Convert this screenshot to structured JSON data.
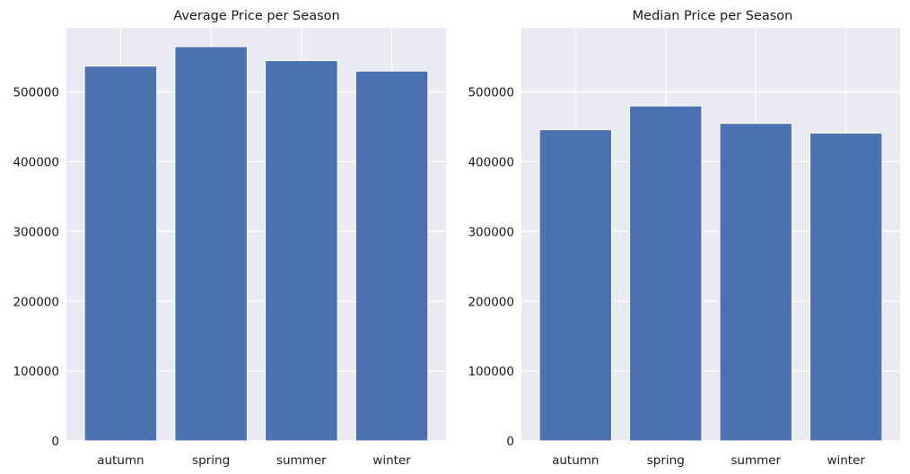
{
  "chart_data": [
    {
      "type": "bar",
      "title": "Average Price per Season",
      "categories": [
        "autumn",
        "spring",
        "summer",
        "winter"
      ],
      "values": [
        537000,
        565000,
        545000,
        530000
      ],
      "ylim": [
        0,
        592000
      ],
      "yticks": [
        0,
        100000,
        200000,
        300000,
        400000,
        500000
      ],
      "ytick_labels": [
        "0",
        "100000",
        "200000",
        "300000",
        "400000",
        "500000"
      ],
      "grid": true,
      "bar_color": "#4c72b0",
      "background_color": "#eaeaf2"
    },
    {
      "type": "bar",
      "title": "Median Price per Season",
      "categories": [
        "autumn",
        "spring",
        "summer",
        "winter"
      ],
      "values": [
        446000,
        480000,
        455000,
        441000
      ],
      "ylim": [
        0,
        592000
      ],
      "yticks": [
        0,
        100000,
        200000,
        300000,
        400000,
        500000
      ],
      "ytick_labels": [
        "0",
        "100000",
        "200000",
        "300000",
        "400000",
        "500000"
      ],
      "grid": true,
      "bar_color": "#4c72b0",
      "background_color": "#eaeaf2"
    }
  ]
}
